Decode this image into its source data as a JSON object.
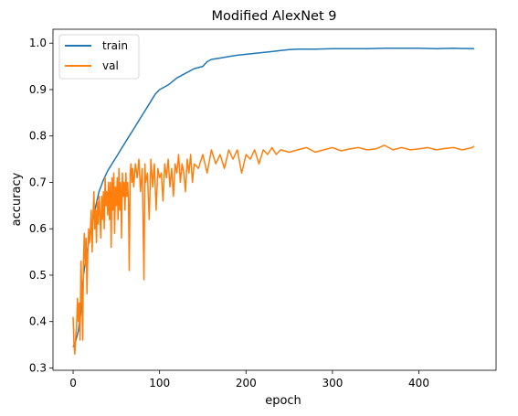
{
  "chart_data": {
    "type": "line",
    "title": "Modified AlexNet 9",
    "xlabel": "epoch",
    "ylabel": "accuracy",
    "xlim": [
      -23.3,
      489.3
    ],
    "ylim": [
      0.295,
      1.03
    ],
    "xticks": [
      0,
      100,
      200,
      300,
      400
    ],
    "yticks": [
      0.3,
      0.4,
      0.5,
      0.6,
      0.7,
      0.8,
      0.9,
      1.0
    ],
    "xtick_labels": [
      "0",
      "100",
      "200",
      "300",
      "400"
    ],
    "ytick_labels": [
      "0.3",
      "0.4",
      "0.5",
      "0.6",
      "0.7",
      "0.8",
      "0.9",
      "1.0"
    ],
    "grid": false,
    "legend_position": "upper left",
    "series": [
      {
        "name": "train",
        "color": "#1f77b4",
        "x": [
          0,
          3,
          6,
          9,
          12,
          15,
          18,
          21,
          25,
          30,
          35,
          40,
          45,
          50,
          55,
          60,
          65,
          70,
          75,
          80,
          85,
          90,
          95,
          100,
          110,
          120,
          130,
          140,
          150,
          155,
          160,
          170,
          180,
          190,
          200,
          210,
          220,
          230,
          240,
          250,
          260,
          280,
          300,
          320,
          340,
          360,
          380,
          400,
          420,
          440,
          464
        ],
        "y": [
          0.345,
          0.358,
          0.38,
          0.42,
          0.5,
          0.54,
          0.57,
          0.6,
          0.64,
          0.68,
          0.705,
          0.725,
          0.74,
          0.755,
          0.77,
          0.785,
          0.8,
          0.815,
          0.83,
          0.845,
          0.86,
          0.875,
          0.89,
          0.9,
          0.91,
          0.925,
          0.935,
          0.945,
          0.95,
          0.96,
          0.965,
          0.968,
          0.971,
          0.974,
          0.976,
          0.978,
          0.98,
          0.982,
          0.984,
          0.986,
          0.987,
          0.987,
          0.988,
          0.988,
          0.988,
          0.989,
          0.989,
          0.989,
          0.988,
          0.989,
          0.988
        ]
      },
      {
        "name": "val",
        "color": "#ff7f0e",
        "x": [
          0,
          1,
          2,
          3,
          4,
          5,
          6,
          7,
          8,
          9,
          10,
          11,
          12,
          13,
          14,
          15,
          16,
          17,
          18,
          19,
          20,
          21,
          22,
          23,
          24,
          25,
          26,
          27,
          28,
          29,
          30,
          31,
          32,
          33,
          34,
          35,
          36,
          37,
          38,
          39,
          40,
          41,
          42,
          43,
          44,
          45,
          46,
          47,
          48,
          49,
          50,
          51,
          52,
          53,
          54,
          55,
          56,
          57,
          58,
          59,
          60,
          61,
          62,
          63,
          64,
          65,
          66,
          67,
          68,
          69,
          70,
          72,
          74,
          76,
          78,
          80,
          82,
          83,
          84,
          86,
          88,
          90,
          92,
          94,
          96,
          98,
          100,
          102,
          104,
          106,
          108,
          110,
          112,
          114,
          116,
          118,
          120,
          122,
          124,
          126,
          128,
          130,
          132,
          134,
          136,
          138,
          140,
          145,
          150,
          155,
          160,
          165,
          170,
          175,
          180,
          185,
          190,
          195,
          200,
          205,
          210,
          215,
          220,
          225,
          230,
          235,
          240,
          250,
          260,
          270,
          280,
          290,
          300,
          310,
          320,
          330,
          340,
          350,
          360,
          370,
          380,
          390,
          400,
          410,
          420,
          430,
          440,
          450,
          455,
          460,
          464
        ],
        "y": [
          0.41,
          0.35,
          0.33,
          0.37,
          0.39,
          0.45,
          0.4,
          0.44,
          0.36,
          0.53,
          0.47,
          0.36,
          0.53,
          0.59,
          0.52,
          0.58,
          0.46,
          0.55,
          0.6,
          0.57,
          0.6,
          0.64,
          0.55,
          0.63,
          0.68,
          0.6,
          0.64,
          0.57,
          0.66,
          0.61,
          0.67,
          0.63,
          0.58,
          0.67,
          0.62,
          0.68,
          0.6,
          0.71,
          0.65,
          0.68,
          0.63,
          0.7,
          0.62,
          0.7,
          0.56,
          0.71,
          0.64,
          0.72,
          0.59,
          0.69,
          0.65,
          0.71,
          0.62,
          0.73,
          0.64,
          0.7,
          0.58,
          0.72,
          0.67,
          0.7,
          0.64,
          0.72,
          0.67,
          0.7,
          0.66,
          0.51,
          0.72,
          0.74,
          0.7,
          0.73,
          0.69,
          0.74,
          0.71,
          0.75,
          0.68,
          0.73,
          0.49,
          0.74,
          0.7,
          0.72,
          0.62,
          0.75,
          0.69,
          0.74,
          0.64,
          0.73,
          0.71,
          0.72,
          0.66,
          0.74,
          0.71,
          0.75,
          0.69,
          0.73,
          0.67,
          0.74,
          0.72,
          0.76,
          0.7,
          0.74,
          0.72,
          0.68,
          0.75,
          0.72,
          0.76,
          0.7,
          0.74,
          0.73,
          0.76,
          0.72,
          0.77,
          0.74,
          0.76,
          0.73,
          0.77,
          0.75,
          0.77,
          0.72,
          0.76,
          0.75,
          0.77,
          0.74,
          0.77,
          0.76,
          0.775,
          0.76,
          0.77,
          0.765,
          0.77,
          0.775,
          0.765,
          0.77,
          0.775,
          0.768,
          0.772,
          0.775,
          0.77,
          0.772,
          0.78,
          0.77,
          0.775,
          0.77,
          0.772,
          0.775,
          0.77,
          0.773,
          0.775,
          0.77,
          0.772,
          0.774,
          0.778
        ]
      }
    ]
  }
}
